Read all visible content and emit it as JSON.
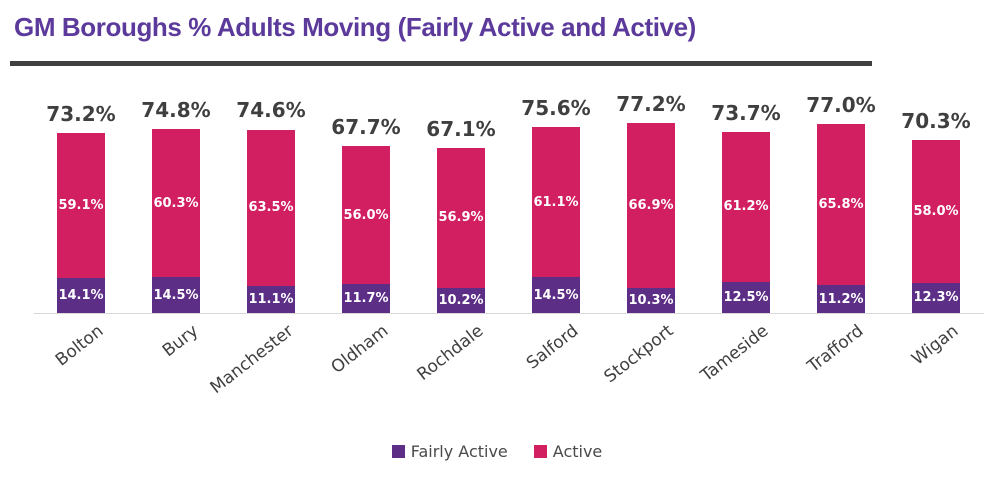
{
  "title": "GM Boroughs % Adults Moving (Fairly Active and Active)",
  "legend": {
    "fairly_active_label": "Fairly Active",
    "active_label": "Active"
  },
  "colors": {
    "title_text": "#5B3A9B",
    "title_underline": "#3F3F3F",
    "fairly_active": "#5C2E86",
    "active": "#D11F61",
    "total_label_text": "#3F3F3F",
    "segment_label_text": "#FFFFFF",
    "axis_label_text": "#404040",
    "legend_text": "#4A4A4A",
    "axis_baseline": "#D9D9D9"
  },
  "chart_data": {
    "type": "bar",
    "subtype": "stacked",
    "title": "GM Boroughs % Adults Moving (Fairly Active and Active)",
    "categories": [
      "Bolton",
      "Bury",
      "Manchester",
      "Oldham",
      "Rochdale",
      "Salford",
      "Stockport",
      "Tameside",
      "Trafford",
      "Wigan"
    ],
    "series": [
      {
        "name": "Fairly Active",
        "color": "#5C2E86",
        "values": [
          14.1,
          14.5,
          11.1,
          11.7,
          10.2,
          14.5,
          10.3,
          12.5,
          11.2,
          12.3
        ]
      },
      {
        "name": "Active",
        "color": "#D11F61",
        "values": [
          59.1,
          60.3,
          63.5,
          56.0,
          56.9,
          61.1,
          66.9,
          61.2,
          65.8,
          58.0
        ]
      }
    ],
    "totals": [
      "73.2%",
      "74.8%",
      "74.6%",
      "67.7%",
      "67.1%",
      "75.6%",
      "77.2%",
      "73.7%",
      "77.0%",
      "70.3%"
    ],
    "segment_labels": {
      "fairly_active": [
        "14.1%",
        "14.5%",
        "11.1%",
        "11.7%",
        "10.2%",
        "14.5%",
        "10.3%",
        "12.5%",
        "11.2%",
        "12.3%"
      ],
      "active": [
        "59.1%",
        "60.3%",
        "63.5%",
        "56.0%",
        "56.9%",
        "61.1%",
        "66.9%",
        "61.2%",
        "65.8%",
        "58.0%"
      ]
    },
    "value_suffix": "%",
    "xlabel": "",
    "ylabel": "",
    "ylim": [
      0,
      80
    ],
    "grid": false,
    "legend_position": "bottom",
    "legend_entries": [
      "Fairly Active",
      "Active"
    ]
  }
}
